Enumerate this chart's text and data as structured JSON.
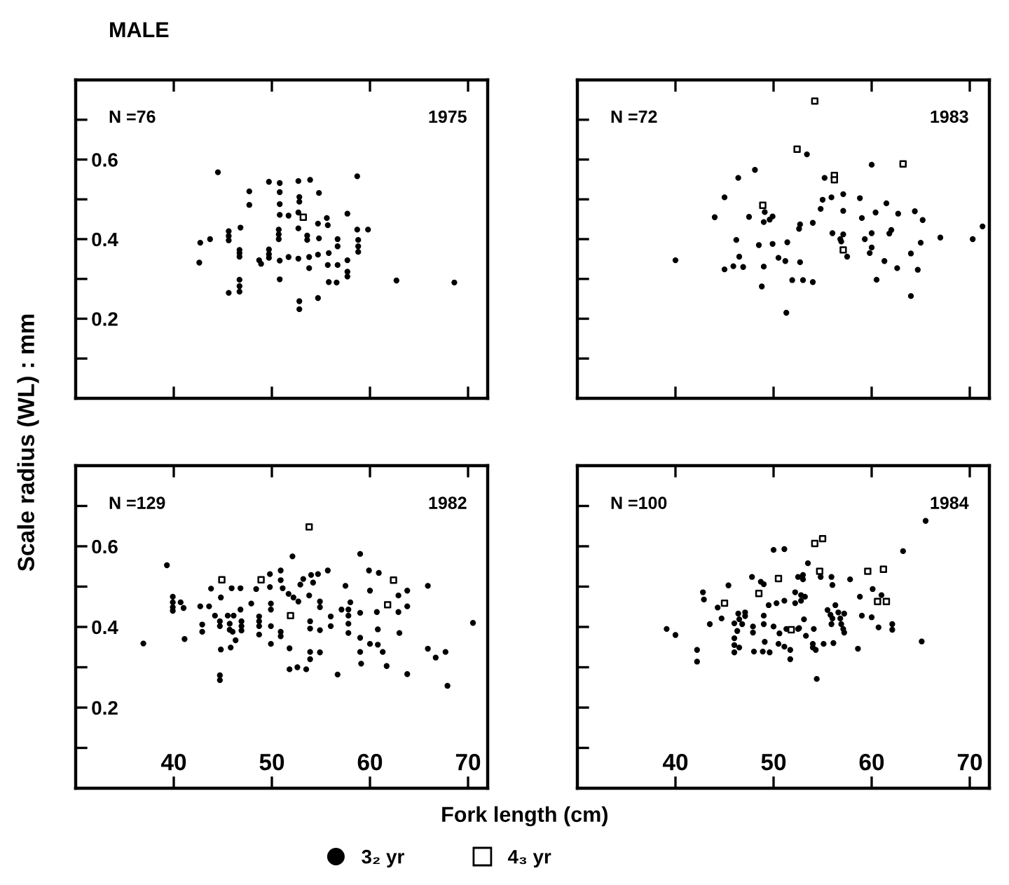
{
  "chart_data": [
    {
      "type": "scatter",
      "title": "MALE",
      "ylabel": "Scale radius (WL) : mm",
      "annotations": [
        "N =76",
        "1975"
      ],
      "xlim": [
        30,
        72
      ],
      "ylim": [
        0,
        0.8
      ],
      "xticks": [
        40,
        50,
        60,
        70
      ],
      "yticks": [
        {
          "value": 0.1,
          "label": null
        },
        0.2,
        {
          "value": 0.3,
          "label": null
        },
        0.4,
        {
          "value": 0.5,
          "label": null
        },
        0.6,
        {
          "value": 0.7,
          "label": null
        }
      ],
      "tick_labels": "y",
      "grid": false,
      "legend": "bottom",
      "series": [
        {
          "name": "3₂ yr",
          "color": "#000000",
          "marker": "circle",
          "x": [
            44.5,
            42.6,
            42.7,
            43.7,
            45.6,
            45.6,
            45.6,
            46.8,
            46.7,
            46.7,
            46.7,
            45.6,
            46.7,
            46.7,
            46.7,
            47.7,
            47.7,
            48.7,
            48.9,
            49.7,
            49.7,
            49.7,
            49.7,
            50.8,
            50.8,
            50.8,
            50.8,
            50.7,
            50.7,
            50.7,
            50.8,
            50.8,
            51.7,
            51.7,
            52.7,
            52.8,
            52.8,
            52.7,
            52.7,
            52.7,
            52.8,
            52.8,
            53.9,
            53.6,
            53.6,
            53.8,
            53.8,
            54.8,
            54.7,
            54.8,
            54.7,
            54.7,
            55.6,
            55.7,
            55.8,
            55.7,
            55.8,
            56.7,
            56.7,
            56.7,
            56.6,
            57.7,
            57.7,
            57.7,
            57.7,
            58.7,
            58.7,
            58.8,
            58.8,
            58.8,
            59.8,
            62.7,
            68.6
          ],
          "values": [
            0.568,
            0.341,
            0.391,
            0.4,
            0.42,
            0.408,
            0.397,
            0.429,
            0.373,
            0.365,
            0.356,
            0.265,
            0.298,
            0.282,
            0.268,
            0.52,
            0.486,
            0.347,
            0.338,
            0.544,
            0.374,
            0.362,
            0.353,
            0.541,
            0.518,
            0.488,
            0.461,
            0.424,
            0.412,
            0.4,
            0.346,
            0.299,
            0.459,
            0.355,
            0.546,
            0.506,
            0.494,
            0.467,
            0.427,
            0.351,
            0.244,
            0.224,
            0.549,
            0.409,
            0.398,
            0.355,
            0.327,
            0.516,
            0.439,
            0.402,
            0.361,
            0.252,
            0.453,
            0.435,
            0.365,
            0.335,
            0.292,
            0.4,
            0.382,
            0.335,
            0.291,
            0.464,
            0.347,
            0.318,
            0.306,
            0.558,
            0.424,
            0.398,
            0.382,
            0.368,
            0.424,
            0.296,
            0.291
          ]
        },
        {
          "name": "4₃ yr",
          "color": "#000000",
          "marker": "square",
          "x": [
            53.2
          ],
          "values": [
            0.455
          ]
        }
      ]
    },
    {
      "type": "scatter",
      "annotations": [
        "N =72",
        "1983"
      ],
      "xlim": [
        30,
        72
      ],
      "ylim": [
        0,
        0.8
      ],
      "xticks": [
        40,
        50,
        60,
        70
      ],
      "yticks": [
        0.1,
        0.2,
        0.3,
        0.4,
        0.5,
        0.6,
        0.7
      ],
      "tick_labels": false,
      "grid": false,
      "series": [
        {
          "color": "#000000",
          "marker": "circle",
          "x": [
            40,
            44,
            45,
            45,
            46.2,
            46.4,
            46.5,
            45.9,
            46.9,
            47.5,
            48.1,
            48.5,
            48.8,
            49,
            49.1,
            49,
            49.6,
            49.9,
            49.9,
            50.5,
            51.2,
            51.4,
            51.3,
            51.9,
            52.6,
            52.7,
            52.7,
            53,
            53.4,
            54,
            54,
            54.8,
            55,
            55.2,
            55.9,
            56,
            56.8,
            56.9,
            57.1,
            57.1,
            57.1,
            57.5,
            58.8,
            59,
            59.3,
            59.8,
            60,
            60,
            60,
            60.4,
            60.5,
            61.3,
            61.5,
            61.8,
            62,
            62.6,
            62.7,
            64,
            64,
            64.4,
            64.7,
            65,
            65.2,
            67,
            70.3,
            71.3
          ],
          "values": [
            0.347,
            0.455,
            0.505,
            0.324,
            0.398,
            0.554,
            0.356,
            0.332,
            0.33,
            0.456,
            0.574,
            0.385,
            0.281,
            0.443,
            0.468,
            0.331,
            0.449,
            0.457,
            0.388,
            0.353,
            0.345,
            0.392,
            0.215,
            0.297,
            0.426,
            0.437,
            0.342,
            0.297,
            0.613,
            0.441,
            0.292,
            0.476,
            0.499,
            0.554,
            0.505,
            0.415,
            0.4,
            0.394,
            0.412,
            0.513,
            0.471,
            0.356,
            0.503,
            0.453,
            0.4,
            0.365,
            0.379,
            0.587,
            0.415,
            0.467,
            0.298,
            0.345,
            0.49,
            0.414,
            0.423,
            0.327,
            0.464,
            0.364,
            0.257,
            0.47,
            0.323,
            0.391,
            0.448,
            0.404,
            0.4,
            0.432
          ]
        },
        {
          "color": "#000000",
          "marker": "square",
          "x": [
            54.2,
            52.4,
            56.2,
            56.2,
            48.9,
            63.2,
            57.1
          ],
          "values": [
            0.747,
            0.626,
            0.56,
            0.549,
            0.485,
            0.589,
            0.373
          ]
        }
      ]
    },
    {
      "type": "scatter",
      "xlabel": "Fork length (cm)",
      "annotations": [
        "N =129",
        "1982"
      ],
      "xlim": [
        30,
        72
      ],
      "ylim": [
        0,
        0.8
      ],
      "xticks": [
        40,
        50,
        60,
        70
      ],
      "yticks": [
        {
          "value": 0.1,
          "label": null
        },
        0.2,
        {
          "value": 0.3,
          "label": null
        },
        0.4,
        {
          "value": 0.5,
          "label": null
        },
        0.6,
        {
          "value": 0.7,
          "label": null
        }
      ],
      "grid": false,
      "series": [
        {
          "color": "#000000",
          "marker": "circle",
          "x": [
            36.9,
            39.3,
            39.9,
            39.9,
            39.9,
            39.9,
            40.7,
            41,
            41.1,
            42.7,
            42.9,
            42.9,
            43.6,
            43.8,
            44.2,
            44.8,
            44.7,
            44.7,
            44.8,
            44.7,
            44.7,
            45.5,
            45.7,
            45.7,
            45.9,
            46,
            45.8,
            46.1,
            46.3,
            46.8,
            46.8,
            46.9,
            46.9,
            46.9,
            47.9,
            48.4,
            48.7,
            48.7,
            48.7,
            48.7,
            49.8,
            49.8,
            49.9,
            49.9,
            49.9,
            49.9,
            50.9,
            50.9,
            50.9,
            50.9,
            51.1,
            51.7,
            51.8,
            52.1,
            52.2,
            51.8,
            52.6,
            52.7,
            52.9,
            53.2,
            53.5,
            53.8,
            53.9,
            53.9,
            53.9,
            53.9,
            54,
            54.2,
            54.7,
            54.9,
            54.9,
            54.9,
            54.9,
            55.7,
            56,
            56,
            56.7,
            57.5,
            57.1,
            57.8,
            57.8,
            57.8,
            57.8,
            58,
            59,
            59,
            59,
            59,
            59.1,
            59.9,
            60,
            60,
            60.7,
            60.8,
            60.9,
            60.8,
            61.3,
            61.7,
            62.9,
            62.9,
            63,
            63.8,
            63.8,
            63.8,
            65.9,
            65.9,
            66.7,
            67.7,
            67.9,
            70.5
          ],
          "values": [
            0.359,
            0.553,
            0.475,
            0.461,
            0.449,
            0.44,
            0.461,
            0.447,
            0.37,
            0.451,
            0.388,
            0.406,
            0.451,
            0.495,
            0.428,
            0.473,
            0.414,
            0.402,
            0.344,
            0.28,
            0.268,
            0.428,
            0.408,
            0.393,
            0.496,
            0.388,
            0.349,
            0.428,
            0.367,
            0.496,
            0.443,
            0.414,
            0.402,
            0.391,
            0.458,
            0.494,
            0.426,
            0.414,
            0.402,
            0.381,
            0.531,
            0.499,
            0.458,
            0.443,
            0.402,
            0.358,
            0.54,
            0.516,
            0.388,
            0.377,
            0.496,
            0.482,
            0.347,
            0.575,
            0.473,
            0.295,
            0.3,
            0.463,
            0.505,
            0.519,
            0.295,
            0.478,
            0.414,
            0.396,
            0.338,
            0.32,
            0.529,
            0.51,
            0.531,
            0.449,
            0.463,
            0.392,
            0.337,
            0.54,
            0.426,
            0.402,
            0.282,
            0.502,
            0.443,
            0.443,
            0.428,
            0.408,
            0.385,
            0.461,
            0.581,
            0.435,
            0.373,
            0.338,
            0.309,
            0.54,
            0.49,
            0.358,
            0.437,
            0.394,
            0.534,
            0.356,
            0.338,
            0.303,
            0.478,
            0.437,
            0.385,
            0.49,
            0.451,
            0.283,
            0.502,
            0.346,
            0.324,
            0.338,
            0.254,
            0.41
          ]
        },
        {
          "color": "#000000",
          "marker": "square",
          "x": [
            53.8,
            44.9,
            48.9,
            51.9,
            62.4,
            61.8
          ],
          "values": [
            0.648,
            0.517,
            0.517,
            0.428,
            0.516,
            0.455
          ]
        }
      ]
    },
    {
      "type": "scatter",
      "annotations": [
        "N =100",
        "1984"
      ],
      "xlim": [
        30,
        72
      ],
      "ylim": [
        0,
        0.8
      ],
      "xticks": [
        40,
        50,
        60,
        70
      ],
      "yticks": [
        0.1,
        0.2,
        0.3,
        0.4,
        0.5,
        0.6,
        0.7
      ],
      "tick_labels": "x",
      "grid": false,
      "series": [
        {
          "color": "#000000",
          "marker": "circle",
          "x": [
            39.1,
            40,
            42.2,
            42.2,
            42.8,
            42.9,
            43.5,
            44.3,
            44.7,
            45.4,
            46,
            46,
            46,
            46,
            46.3,
            46.5,
            46.4,
            46.5,
            46.8,
            47.1,
            47.1,
            47.8,
            47.9,
            47.9,
            48,
            48.7,
            49,
            49,
            49,
            49.1,
            48.9,
            49.6,
            49.5,
            50,
            50,
            50.3,
            50.5,
            50.6,
            51.1,
            51.1,
            51.1,
            51.3,
            51.7,
            51.7,
            52.2,
            52.2,
            52.5,
            52.5,
            52.6,
            52.8,
            52.8,
            53,
            53,
            53.1,
            53.2,
            53.3,
            53.5,
            54,
            54,
            54.3,
            54.1,
            54.4,
            54.8,
            55.1,
            55.5,
            55.8,
            55.9,
            56,
            55.9,
            56,
            56.1,
            56.3,
            56.6,
            56.8,
            56.9,
            57.1,
            57.2,
            57.2,
            57.8,
            58.6,
            58.8,
            59,
            60,
            60.1,
            60.7,
            61,
            62.1,
            62.1,
            63.2,
            65.1,
            65.5
          ],
          "values": [
            0.395,
            0.38,
            0.343,
            0.314,
            0.486,
            0.468,
            0.407,
            0.448,
            0.421,
            0.503,
            0.409,
            0.372,
            0.355,
            0.337,
            0.39,
            0.349,
            0.433,
            0.419,
            0.407,
            0.436,
            0.427,
            0.524,
            0.401,
            0.386,
            0.339,
            0.512,
            0.506,
            0.428,
            0.407,
            0.363,
            0.339,
            0.337,
            0.454,
            0.591,
            0.401,
            0.459,
            0.358,
            0.384,
            0.465,
            0.351,
            0.593,
            0.395,
            0.343,
            0.32,
            0.486,
            0.459,
            0.524,
            0.395,
            0.397,
            0.479,
            0.465,
            0.518,
            0.529,
            0.419,
            0.475,
            0.378,
            0.558,
            0.358,
            0.349,
            0.343,
            0.395,
            0.271,
            0.524,
            0.358,
            0.442,
            0.43,
            0.407,
            0.421,
            0.524,
            0.504,
            0.36,
            0.454,
            0.436,
            0.421,
            0.407,
            0.395,
            0.433,
            0.386,
            0.518,
            0.346,
            0.475,
            0.428,
            0.424,
            0.494,
            0.399,
            0.479,
            0.407,
            0.393,
            0.588,
            0.364,
            0.663
          ]
        },
        {
          "color": "#000000",
          "marker": "square",
          "x": [
            54.2,
            55,
            54.7,
            50.5,
            48.5,
            45,
            51.8,
            59.6,
            61.2,
            60.6,
            61.5
          ],
          "values": [
            0.607,
            0.619,
            0.538,
            0.52,
            0.483,
            0.459,
            0.393,
            0.538,
            0.543,
            0.463,
            0.463
          ]
        }
      ]
    }
  ]
}
